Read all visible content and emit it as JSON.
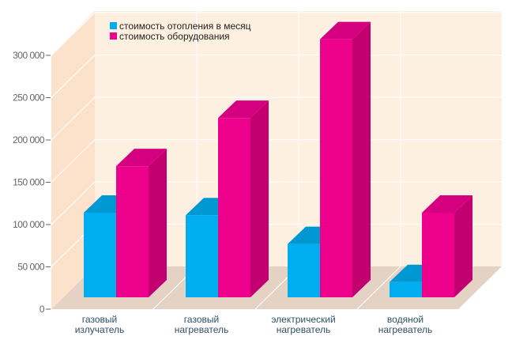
{
  "chart_data": {
    "type": "bar",
    "title": "",
    "xlabel": "",
    "ylabel": "",
    "ylim": [
      0,
      300000
    ],
    "yticks": [
      0,
      50000,
      100000,
      150000,
      200000,
      250000,
      300000
    ],
    "ytick_labels": [
      "0",
      "50 000",
      "100 000",
      "150 000",
      "200 000",
      "250 000",
      "300 000"
    ],
    "categories": [
      [
        "газовый",
        "излучатель"
      ],
      [
        "газовый",
        "нагреватель"
      ],
      [
        "электрический",
        "нагреватель"
      ],
      [
        "водяной",
        "нагреватель"
      ]
    ],
    "series": [
      {
        "name": "стоимость отопления в месяц",
        "color": "#00aeef",
        "values": [
          100000,
          97000,
          63000,
          18000
        ]
      },
      {
        "name": "стоимость оборудования",
        "color": "#ec008c",
        "values": [
          155000,
          212000,
          305000,
          100000
        ]
      }
    ],
    "legend_position": "top-left",
    "grid": true,
    "style": "3d"
  }
}
